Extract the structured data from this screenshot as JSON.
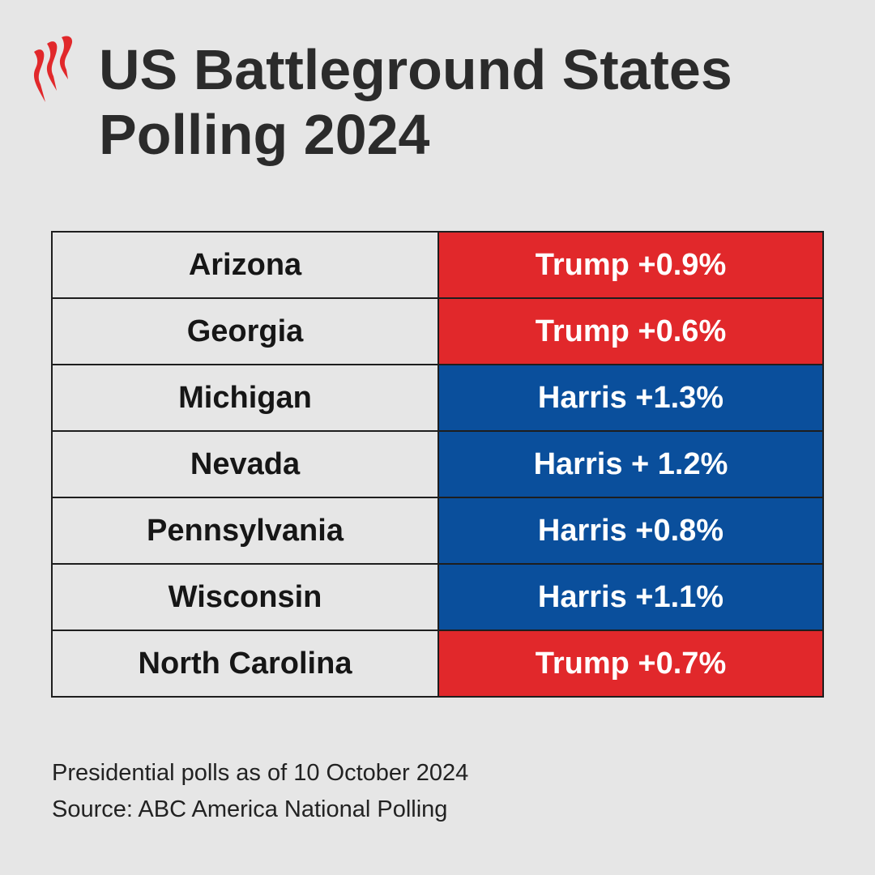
{
  "header": {
    "title": "US Battleground States Polling 2024"
  },
  "table": {
    "rows": [
      {
        "state": "Arizona",
        "result": "Trump +0.9%",
        "color": "#e1282b"
      },
      {
        "state": "Georgia",
        "result": "Trump +0.6%",
        "color": "#e1282b"
      },
      {
        "state": "Michigan",
        "result": "Harris +1.3%",
        "color": "#0a4f9c"
      },
      {
        "state": "Nevada",
        "result": "Harris + 1.2%",
        "color": "#0a4f9c"
      },
      {
        "state": "Pennsylvania",
        "result": "Harris +0.8%",
        "color": "#0a4f9c"
      },
      {
        "state": "Wisconsin",
        "result": "Harris +1.1%",
        "color": "#0a4f9c"
      },
      {
        "state": "North Carolina",
        "result": "Trump +0.7%",
        "color": "#e1282b"
      }
    ]
  },
  "footer": {
    "note": "Presidential polls as of 10 October 2024",
    "source": "Source: ABC America National Polling"
  }
}
